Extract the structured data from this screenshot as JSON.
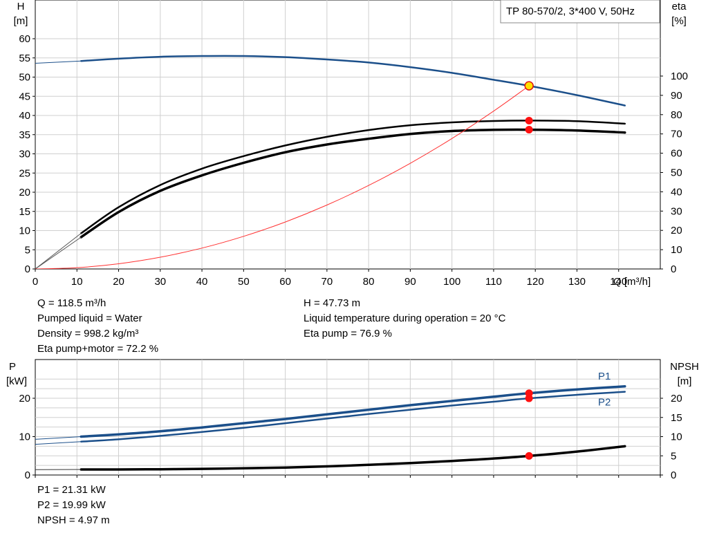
{
  "chart_data": [
    {
      "type": "line",
      "title": "TP 80-570/2, 3*400 V, 50Hz",
      "y_axis_left": {
        "label_line1": "H",
        "label_line2": "[m]",
        "range": [
          0,
          60
        ],
        "ticks": [
          "0",
          "5",
          "10",
          "15",
          "20",
          "25",
          "30",
          "35",
          "40",
          "45",
          "50",
          "55",
          "60"
        ]
      },
      "y_axis_right": {
        "label_line1": "eta",
        "label_line2": "[%]",
        "range": [
          0,
          100
        ],
        "ticks": [
          "0",
          "10",
          "20",
          "30",
          "40",
          "50",
          "60",
          "70",
          "80",
          "90",
          "100"
        ]
      },
      "x_axis": {
        "label": "Q [m³/h]",
        "range": [
          0,
          150
        ],
        "ticks": [
          "0",
          "10",
          "20",
          "30",
          "40",
          "50",
          "60",
          "70",
          "80",
          "90",
          "100",
          "110",
          "120",
          "130",
          "140"
        ]
      },
      "grid": true,
      "series": [
        {
          "id": "H",
          "axis": "left",
          "color": "#1b4f8a",
          "x": [
            11,
            20,
            30,
            40,
            50,
            60,
            70,
            80,
            90,
            100,
            110,
            118.5,
            130,
            141.5
          ],
          "values": [
            54.2,
            54.8,
            55.3,
            55.5,
            55.5,
            55.2,
            54.6,
            53.8,
            52.6,
            51.1,
            49.3,
            47.73,
            45.3,
            42.6
          ]
        },
        {
          "id": "H_thin",
          "axis": "left",
          "color": "#1b4f8a",
          "thin": true,
          "x": [
            0,
            11
          ],
          "values": [
            53.6,
            54.2
          ]
        },
        {
          "id": "eta_pump",
          "axis": "right",
          "color": "#000000",
          "x": [
            11,
            20,
            30,
            40,
            50,
            60,
            70,
            80,
            90,
            100,
            110,
            118.5,
            130,
            141.5
          ],
          "values": [
            18.5,
            32,
            43.5,
            52,
            58.5,
            64,
            68.5,
            72,
            74.5,
            76,
            76.7,
            76.9,
            76.6,
            75.3
          ]
        },
        {
          "id": "eta_pump_motor",
          "axis": "right",
          "color": "#000000",
          "bold": true,
          "x": [
            11,
            20,
            30,
            40,
            50,
            60,
            70,
            80,
            90,
            100,
            110,
            118.5,
            130,
            141.5
          ],
          "values": [
            16.5,
            29.5,
            40.5,
            48.5,
            55,
            60.5,
            64.5,
            67.5,
            70,
            71.5,
            72.1,
            72.2,
            71.8,
            70.7
          ]
        },
        {
          "id": "eta_thin_a",
          "axis": "right",
          "color": "#555555",
          "thin": true,
          "x": [
            0,
            11
          ],
          "values": [
            0,
            18.5
          ]
        },
        {
          "id": "eta_thin_b",
          "axis": "right",
          "color": "#555555",
          "thin": true,
          "x": [
            0,
            11
          ],
          "values": [
            0,
            16.5
          ]
        },
        {
          "id": "system_curve",
          "axis": "left",
          "color": "#ff3030",
          "thin": true,
          "x": [
            0,
            10,
            20,
            30,
            40,
            50,
            60,
            70,
            80,
            90,
            100,
            110,
            118.5
          ],
          "values": [
            0,
            0.34,
            1.36,
            3.06,
            5.44,
            8.5,
            12.24,
            16.66,
            21.76,
            27.54,
            34.0,
            41.14,
            47.73
          ]
        }
      ],
      "points": [
        {
          "x": 118.5,
          "y": 47.73,
          "axis": "left",
          "color": "#ffdf00",
          "stroke": "#e01010"
        },
        {
          "x": 118.5,
          "y": 76.9,
          "axis": "right",
          "color": "#ff1010"
        },
        {
          "x": 118.5,
          "y": 72.2,
          "axis": "right",
          "color": "#ff1010"
        }
      ]
    },
    {
      "type": "line",
      "y_axis_left": {
        "label_line1": "P",
        "label_line2": "[kW]",
        "range": [
          0,
          27
        ],
        "ticks": [
          "0",
          "10",
          "20"
        ]
      },
      "y_axis_right": {
        "label_line1": "NPSH",
        "label_line2": "[m]",
        "range": [
          0,
          27
        ],
        "ticks": [
          "0",
          "5",
          "10",
          "15",
          "20"
        ]
      },
      "x_axis": {
        "range": [
          0,
          150
        ]
      },
      "grid": true,
      "series": [
        {
          "id": "P1",
          "name": "P1",
          "axis": "left",
          "color": "#1b4f8a",
          "bold": true,
          "x": [
            11,
            20,
            30,
            40,
            50,
            60,
            70,
            80,
            90,
            100,
            110,
            118.5,
            130,
            141.5
          ],
          "values": [
            10.0,
            10.6,
            11.4,
            12.4,
            13.5,
            14.6,
            15.8,
            17.0,
            18.2,
            19.3,
            20.4,
            21.31,
            22.3,
            23.1
          ]
        },
        {
          "id": "P2",
          "name": "P2",
          "axis": "left",
          "color": "#1b4f8a",
          "x": [
            11,
            20,
            30,
            40,
            50,
            60,
            70,
            80,
            90,
            100,
            110,
            118.5,
            130,
            141.5
          ],
          "values": [
            8.7,
            9.3,
            10.2,
            11.2,
            12.3,
            13.5,
            14.7,
            15.9,
            17.0,
            18.1,
            19.1,
            19.99,
            20.9,
            21.7
          ]
        },
        {
          "id": "P1_thin",
          "axis": "left",
          "color": "#1b4f8a",
          "thin": true,
          "x": [
            0,
            11
          ],
          "values": [
            9.3,
            10.0
          ]
        },
        {
          "id": "P2_thin",
          "axis": "left",
          "color": "#1b4f8a",
          "thin": true,
          "x": [
            0,
            11
          ],
          "values": [
            8.0,
            8.7
          ]
        },
        {
          "id": "NPSH",
          "axis": "right",
          "color": "#000000",
          "bold": true,
          "x": [
            11,
            20,
            30,
            40,
            50,
            60,
            70,
            80,
            90,
            100,
            110,
            118.5,
            130,
            141.5
          ],
          "values": [
            1.45,
            1.45,
            1.5,
            1.6,
            1.75,
            1.95,
            2.25,
            2.65,
            3.1,
            3.65,
            4.3,
            4.97,
            6.1,
            7.5
          ]
        },
        {
          "id": "NPSH_thin",
          "axis": "right",
          "color": "#333333",
          "thin": true,
          "x": [
            0,
            11
          ],
          "values": [
            1.4,
            1.45
          ]
        }
      ],
      "points": [
        {
          "x": 118.5,
          "y": 21.31,
          "axis": "left",
          "color": "#ff1010"
        },
        {
          "x": 118.5,
          "y": 19.99,
          "axis": "left",
          "color": "#ff1010"
        },
        {
          "x": 118.5,
          "y": 4.97,
          "axis": "right",
          "color": "#ff1010"
        }
      ]
    }
  ],
  "info_top": {
    "left": [
      "Q = 118.5 m³/h",
      "Pumped liquid = Water",
      "Density = 998.2 kg/m³",
      "Eta pump+motor = 72.2 %"
    ],
    "right": [
      "H = 47.73 m",
      "Liquid temperature during operation = 20 °C",
      "Eta pump = 76.9 %"
    ]
  },
  "info_bottom": [
    "P1 = 21.31 kW",
    "P2 = 19.99 kW",
    "NPSH = 4.97 m"
  ]
}
